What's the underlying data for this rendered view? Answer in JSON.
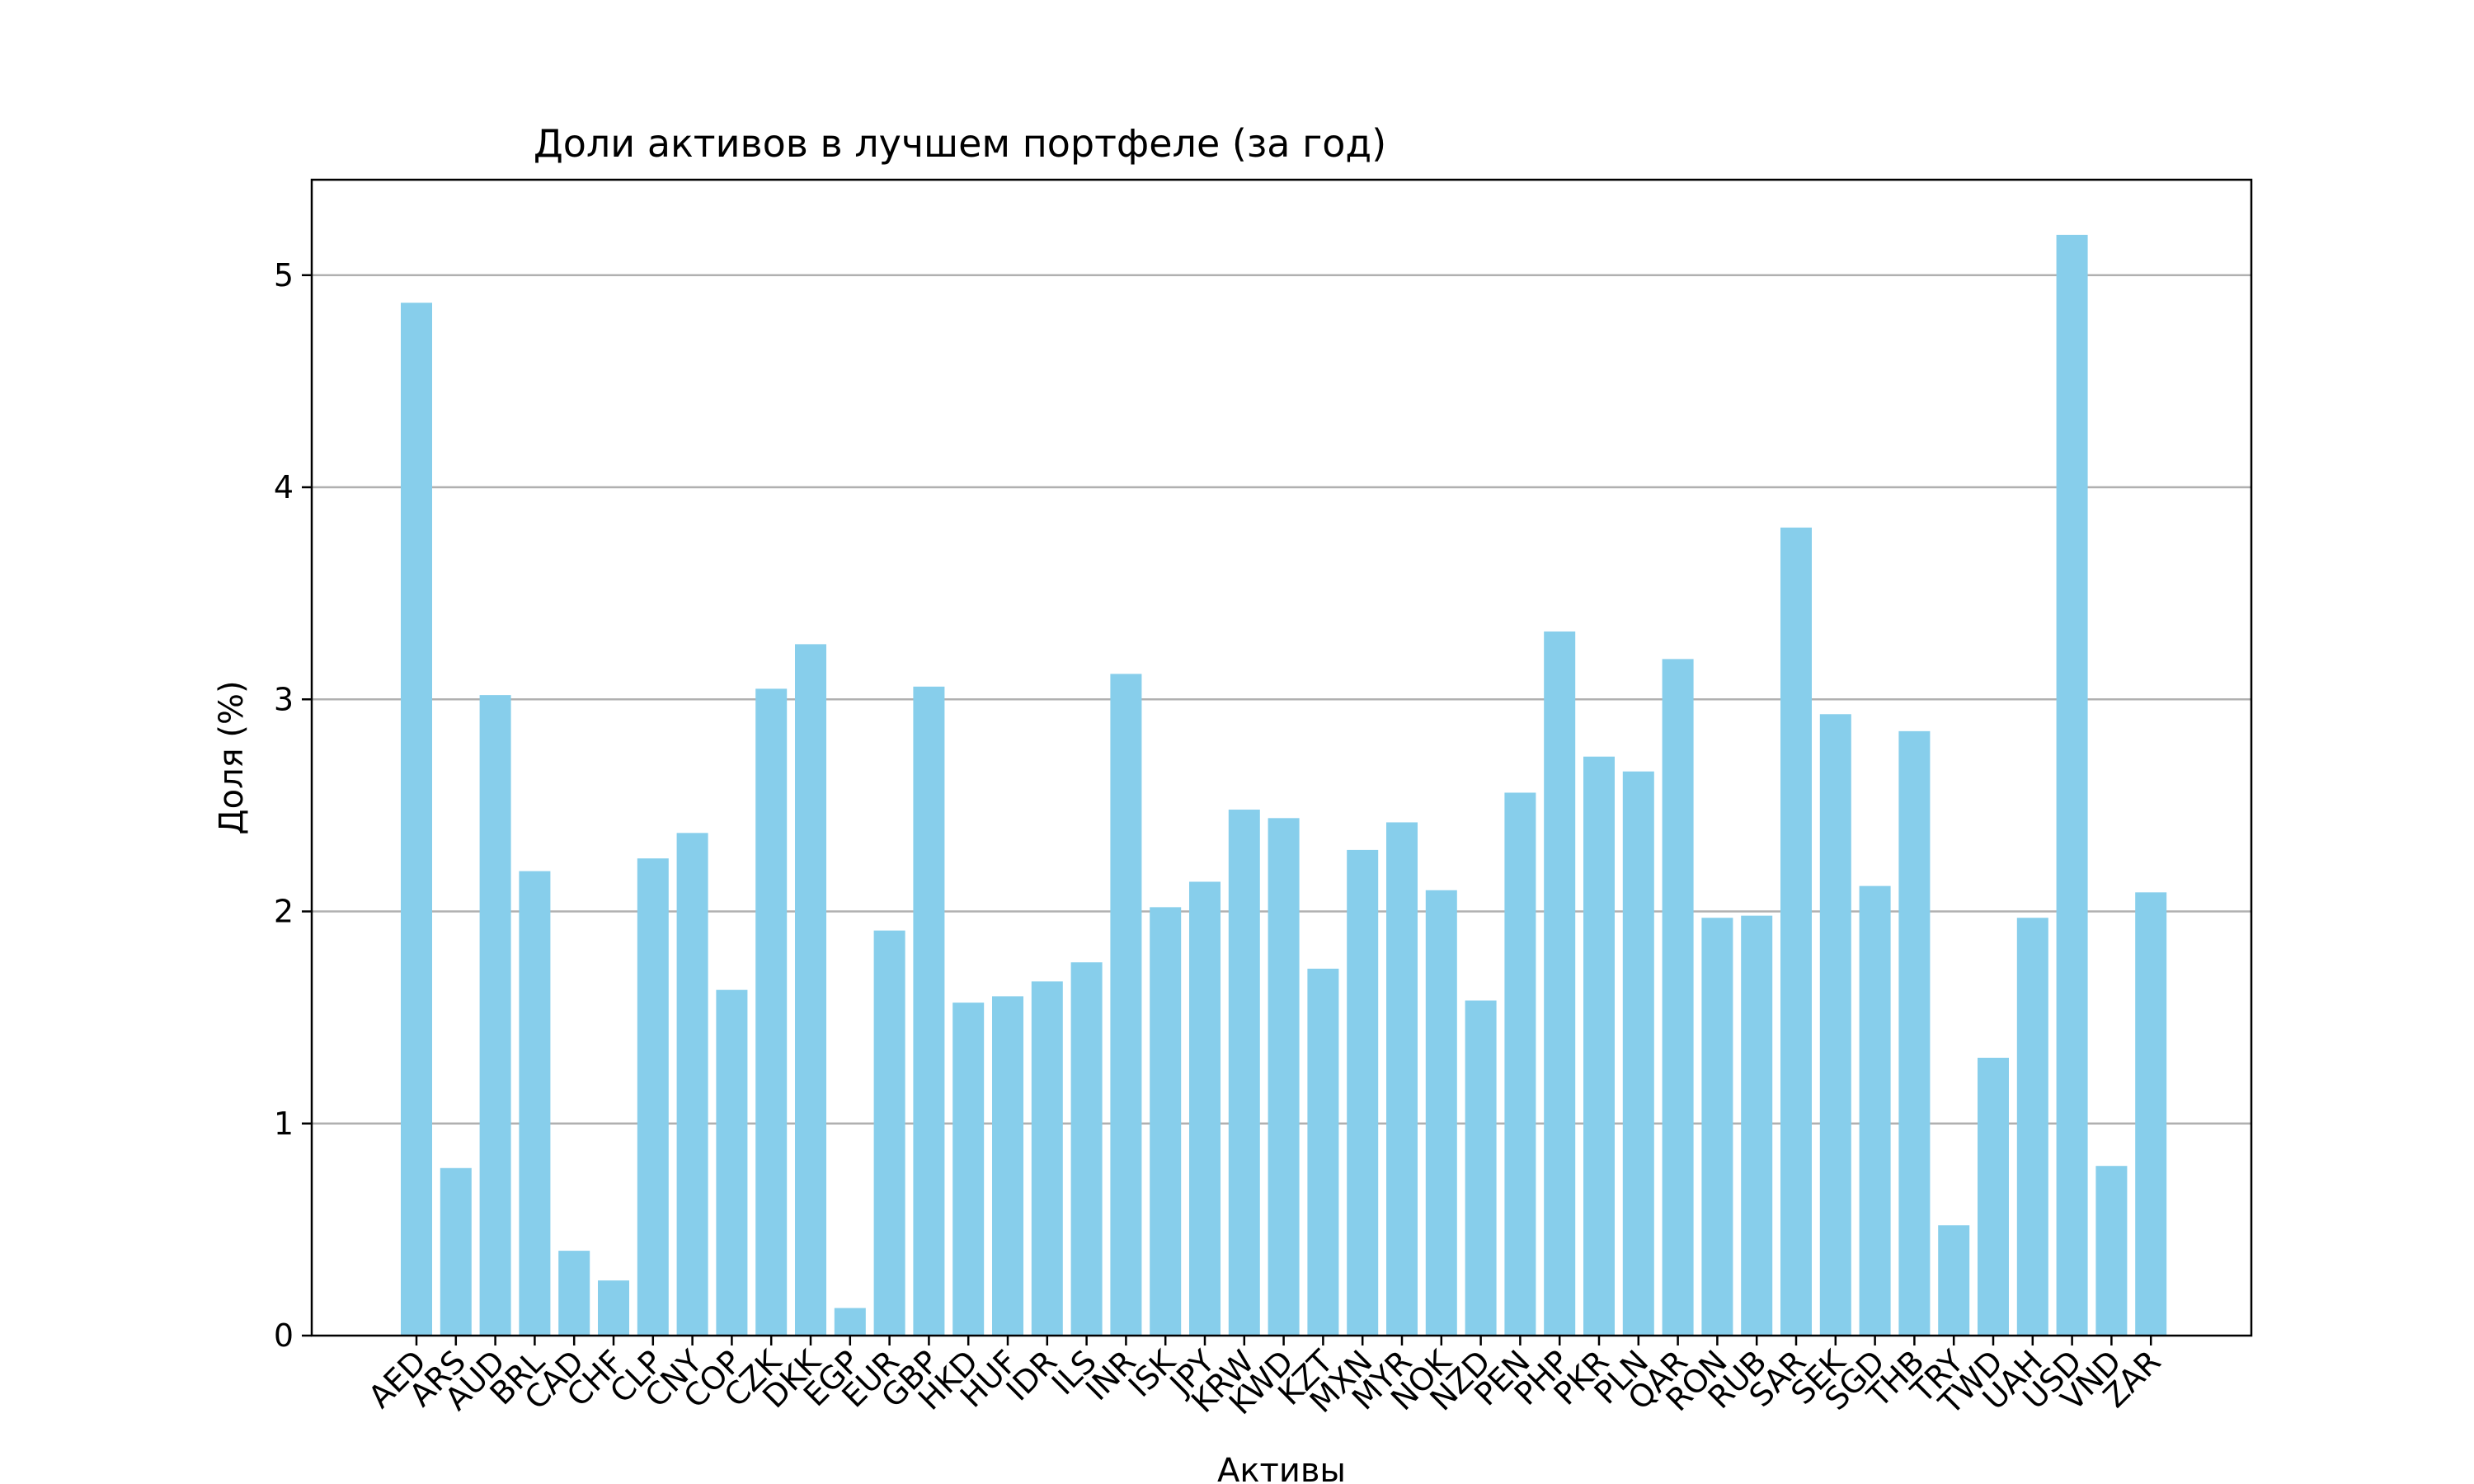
{
  "chart_data": {
    "type": "bar",
    "title": "Доли активов в лучшем портфеле (за год)",
    "xlabel": "Активы",
    "ylabel": "Доля (%)",
    "categories": [
      "AED",
      "ARS",
      "AUD",
      "BRL",
      "CAD",
      "CHF",
      "CLP",
      "CNY",
      "COP",
      "CZK",
      "DKK",
      "EGP",
      "EUR",
      "GBP",
      "HKD",
      "HUF",
      "IDR",
      "ILS",
      "INR",
      "ISK",
      "JPY",
      "KRW",
      "KWD",
      "KZT",
      "MXN",
      "MYR",
      "NOK",
      "NZD",
      "PEN",
      "PHP",
      "PKR",
      "PLN",
      "QAR",
      "RON",
      "RUB",
      "SAR",
      "SEK",
      "SGD",
      "THB",
      "TRY",
      "TWD",
      "UAH",
      "USD",
      "VND",
      "ZAR"
    ],
    "values": [
      4.87,
      0.79,
      3.02,
      2.19,
      0.4,
      0.26,
      2.25,
      2.37,
      1.63,
      3.05,
      3.26,
      0.13,
      1.91,
      3.06,
      1.57,
      1.6,
      1.67,
      1.76,
      3.12,
      2.02,
      2.14,
      2.48,
      2.44,
      1.73,
      2.29,
      2.42,
      2.1,
      1.58,
      2.56,
      3.32,
      2.73,
      2.66,
      3.19,
      1.97,
      1.98,
      3.81,
      2.93,
      2.12,
      2.85,
      0.52,
      1.31,
      1.97,
      5.19,
      0.8,
      2.09
    ],
    "yticks": [
      "0",
      "1",
      "2",
      "3",
      "4",
      "5"
    ],
    "ylim": [
      0,
      5.45
    ],
    "grid": "y",
    "legend": "none",
    "bar_color": "#87ceeb"
  }
}
